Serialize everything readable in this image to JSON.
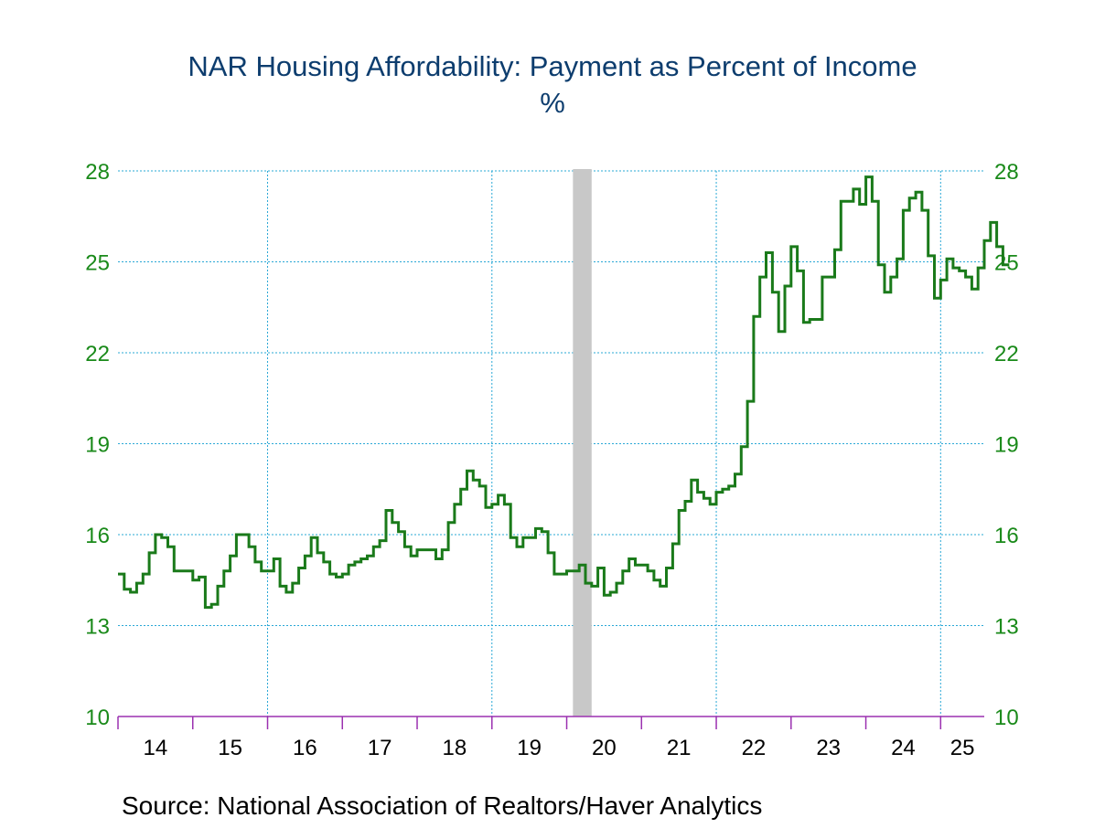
{
  "chart_data": {
    "type": "line",
    "title": "NAR Housing Affordability: Payment as Percent of Income",
    "subtitle": "%",
    "source": "Source:  National Association of Realtors/Haver Analytics",
    "y_ticks": [
      10,
      13,
      16,
      19,
      22,
      25,
      28
    ],
    "ylim": [
      10,
      28
    ],
    "x_labels": [
      "14",
      "15",
      "16",
      "17",
      "18",
      "19",
      "20",
      "21",
      "22",
      "23",
      "24",
      "25"
    ],
    "x_range": [
      "2014-01",
      "2025-07"
    ],
    "grid": true,
    "recession_band": {
      "start": "2020-02",
      "end": "2020-04"
    },
    "colors": {
      "series": "#1a7a1a",
      "grid": "#2aa8d6",
      "axis": "#9b30b0",
      "band": "#c8c8c8",
      "tick_labels": "#1a8a1a",
      "title": "#0d3d6e"
    },
    "series": [
      {
        "x_start": "2014-01",
        "frequency": "monthly",
        "values": [
          14.7,
          14.2,
          14.1,
          14.4,
          14.7,
          15.4,
          16.0,
          15.9,
          15.6,
          14.8,
          14.8,
          14.8,
          14.5,
          14.6,
          13.6,
          13.7,
          14.3,
          14.8,
          15.3,
          16.0,
          16.0,
          15.6,
          15.1,
          14.8,
          14.8,
          15.2,
          14.3,
          14.1,
          14.4,
          14.9,
          15.3,
          15.9,
          15.4,
          15.1,
          14.7,
          14.6,
          14.7,
          15.0,
          15.1,
          15.2,
          15.3,
          15.6,
          15.8,
          16.8,
          16.4,
          16.1,
          15.6,
          15.3,
          15.5,
          15.5,
          15.5,
          15.2,
          15.5,
          16.4,
          17.0,
          17.5,
          18.1,
          17.8,
          17.6,
          16.9,
          17.0,
          17.3,
          17.0,
          15.9,
          15.6,
          15.9,
          15.9,
          16.2,
          16.1,
          15.4,
          14.7,
          14.7,
          14.8,
          14.8,
          15.0,
          14.4,
          14.3,
          14.9,
          14.0,
          14.1,
          14.4,
          14.8,
          15.2,
          15.0,
          15.0,
          14.8,
          14.5,
          14.3,
          14.9,
          15.7,
          16.8,
          17.1,
          17.8,
          17.4,
          17.2,
          17.0,
          17.4,
          17.5,
          17.6,
          18.0,
          18.9,
          20.4,
          23.2,
          24.5,
          25.3,
          24.0,
          22.7,
          24.2,
          25.5,
          24.7,
          23.0,
          23.1,
          23.1,
          24.5,
          24.5,
          25.4,
          27.0,
          27.0,
          27.4,
          26.9,
          27.8,
          27.0,
          24.9,
          24.0,
          24.5,
          25.1,
          26.7,
          27.1,
          27.3,
          26.7,
          25.2,
          23.8,
          24.4,
          25.1,
          24.8,
          24.7,
          24.5,
          24.1,
          24.8,
          25.7,
          26.3,
          25.5,
          24.9
        ]
      }
    ]
  }
}
